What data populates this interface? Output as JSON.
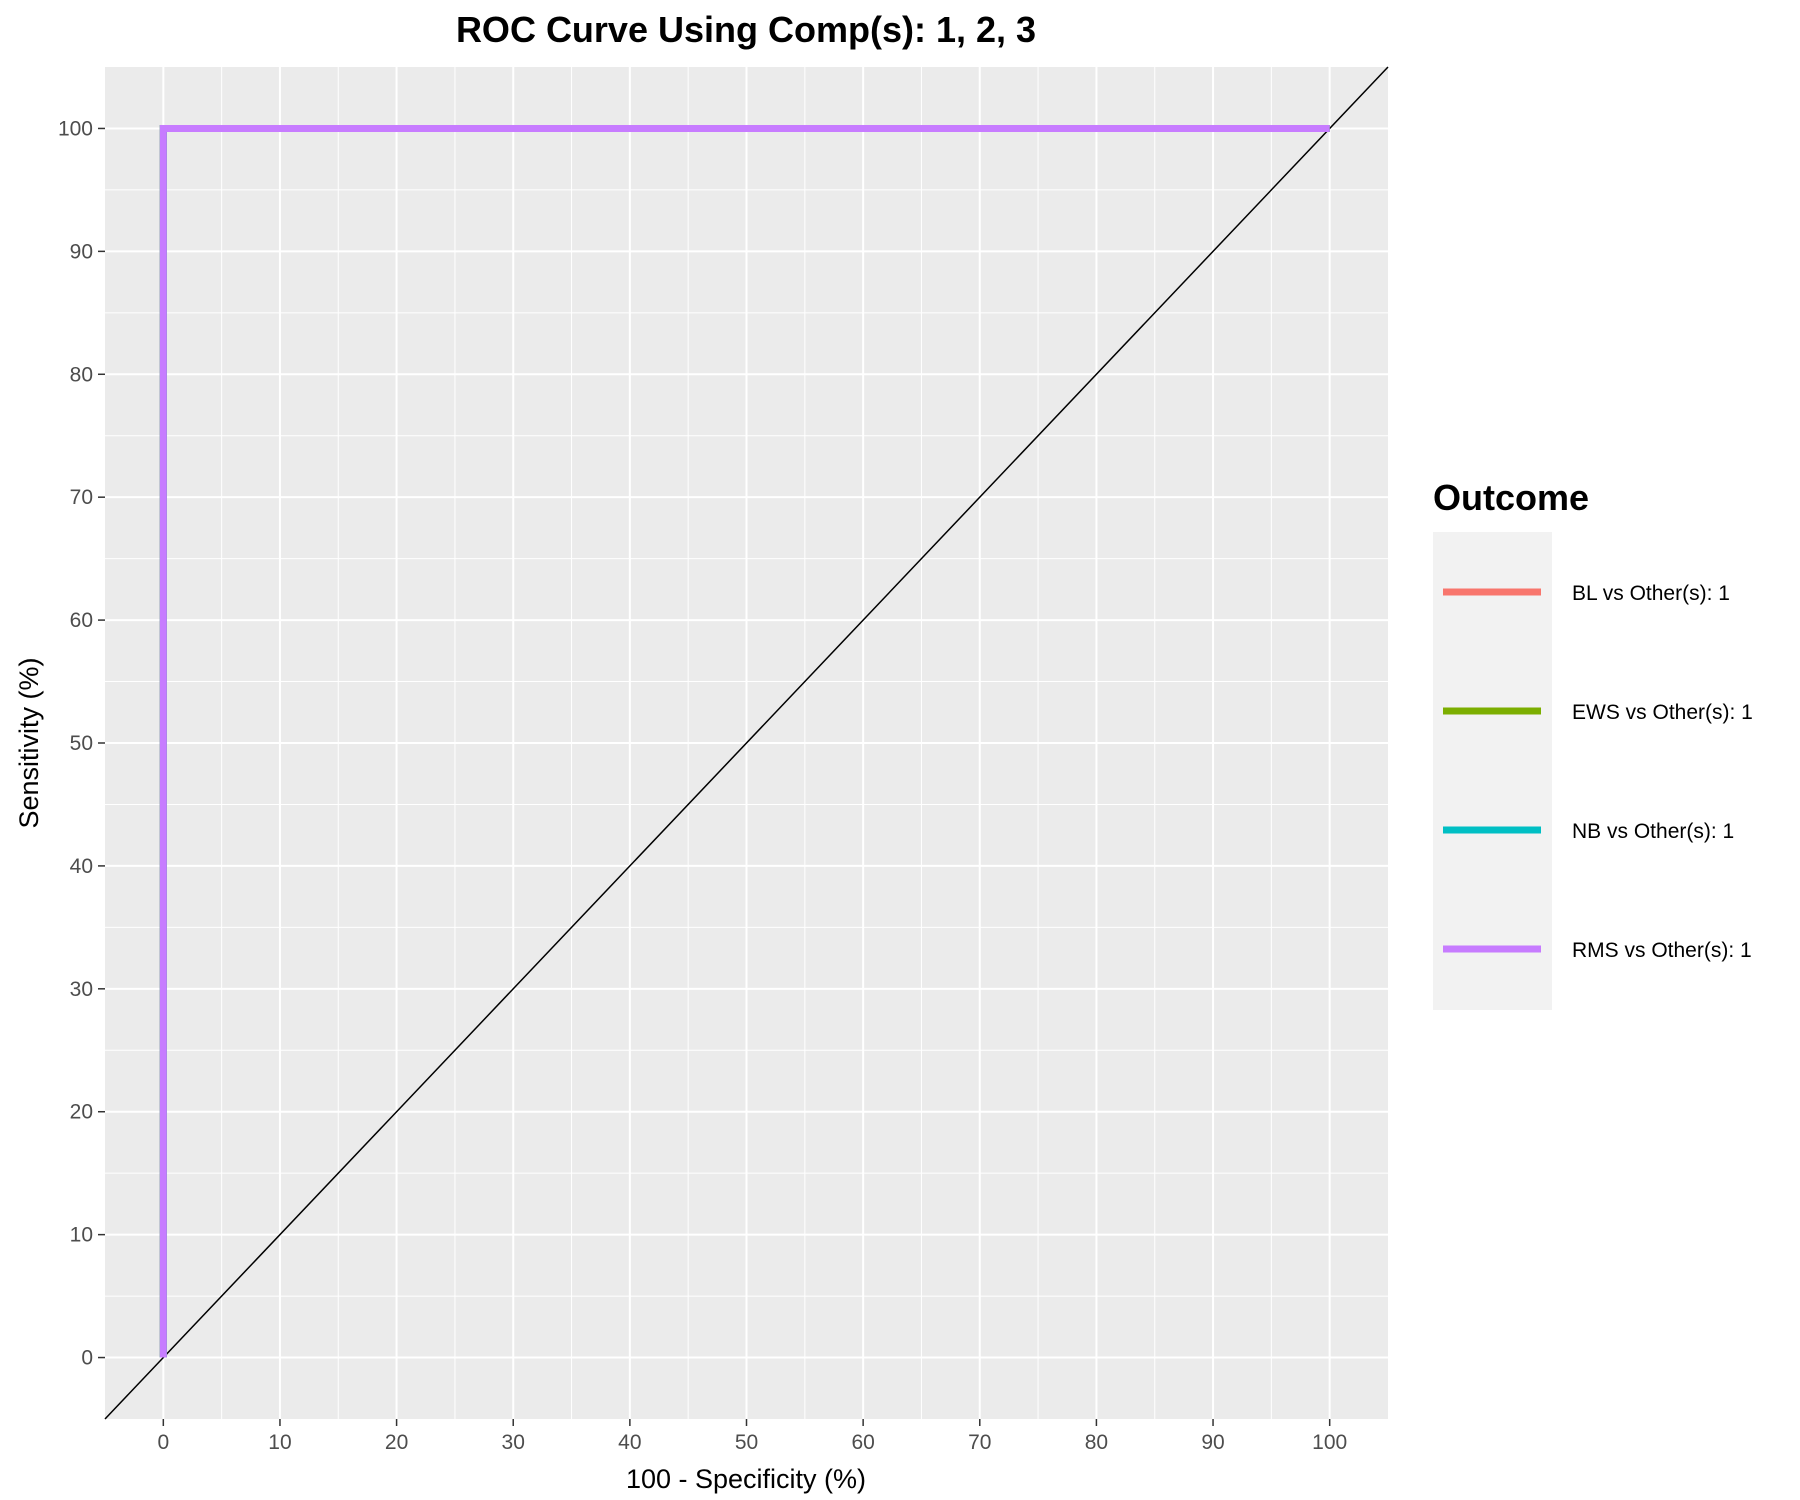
{
  "chart_data": {
    "type": "line",
    "title": "ROC Curve Using Comp(s): 1, 2, 3",
    "xlabel": "100 - Specificity (%)",
    "ylabel": "Sensitivity (%)",
    "xlim": [
      -5,
      105
    ],
    "ylim": [
      -5,
      105
    ],
    "x_ticks": [
      0,
      10,
      20,
      30,
      40,
      50,
      60,
      70,
      80,
      90,
      100
    ],
    "y_ticks": [
      0,
      10,
      20,
      30,
      40,
      50,
      60,
      70,
      80,
      90,
      100
    ],
    "grid": true,
    "legend": {
      "title": "Outcome",
      "position": "right"
    },
    "reference_line": {
      "x": [
        -5,
        105
      ],
      "y": [
        -5,
        105
      ],
      "color": "#000000"
    },
    "series": [
      {
        "name": "BL vs Other(s): 1",
        "color": "#F8766D",
        "x": [
          0,
          0,
          100
        ],
        "y": [
          0,
          100,
          100
        ]
      },
      {
        "name": "EWS vs Other(s): 1",
        "color": "#7CAE00",
        "x": [
          0,
          0,
          100
        ],
        "y": [
          0,
          100,
          100
        ]
      },
      {
        "name": "NB vs Other(s): 1",
        "color": "#00BFC4",
        "x": [
          0,
          0,
          100
        ],
        "y": [
          0,
          100,
          100
        ]
      },
      {
        "name": "RMS vs Other(s): 1",
        "color": "#C77CFF",
        "x": [
          0,
          0,
          100
        ],
        "y": [
          0,
          100,
          100
        ]
      }
    ]
  }
}
